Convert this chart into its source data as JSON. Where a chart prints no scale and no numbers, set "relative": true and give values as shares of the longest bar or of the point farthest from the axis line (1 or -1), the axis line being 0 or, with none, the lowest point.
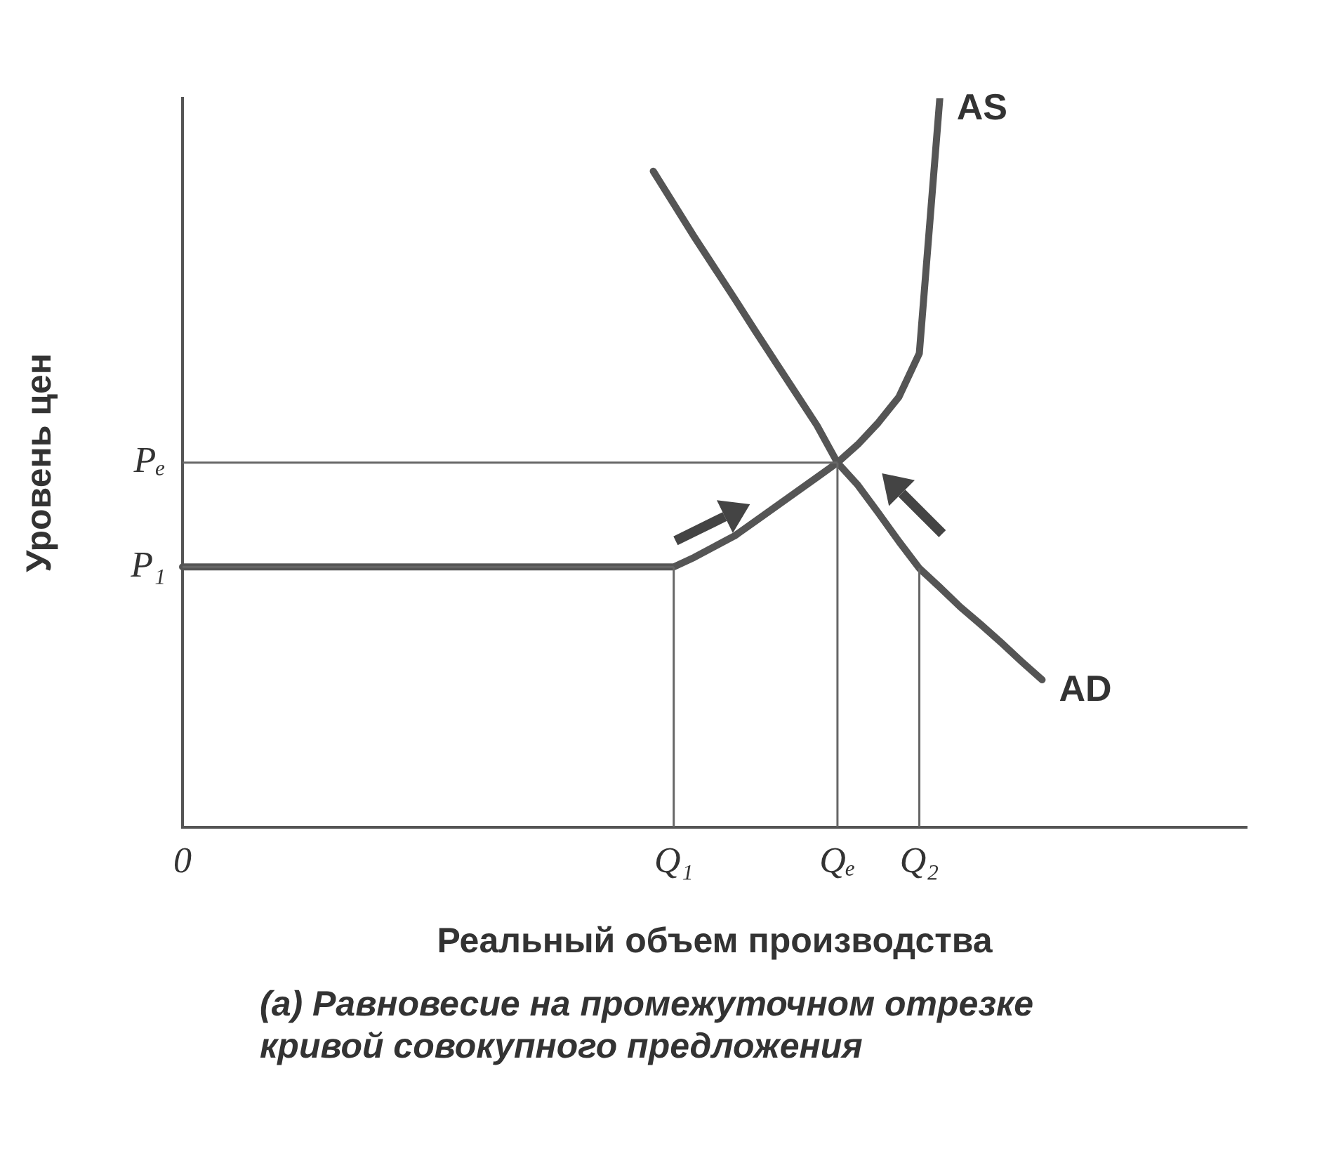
{
  "chart_data": {
    "type": "line",
    "relative": true,
    "title": "(a) Равновесие на промежуточном отрезке кривой совокупного предложения",
    "xlabel": "Реальный объем производства",
    "ylabel": "Уровень цен",
    "categories": [
      "0",
      null,
      null,
      null,
      null,
      null,
      null,
      null,
      null,
      null,
      null,
      null,
      null,
      null,
      null,
      null,
      null,
      null,
      null,
      null,
      null,
      null,
      null,
      null,
      "Q₁",
      null,
      null,
      null,
      null,
      null,
      null,
      null,
      "Qₑ",
      null,
      null,
      null,
      "Q₂",
      null,
      null,
      null,
      null,
      null,
      null,
      null,
      null,
      null,
      null,
      null,
      null,
      null,
      null,
      null,
      null
    ],
    "ref_lines": [
      {
        "axis": "x",
        "value": "Q₁",
        "color": "#666666"
      },
      {
        "axis": "x",
        "value": "Qₑ",
        "color": "#666666"
      },
      {
        "axis": "x",
        "value": "Q₂",
        "color": "#666666"
      },
      {
        "axis": "y",
        "value": 0.357,
        "label": "P₁",
        "color": "#666666"
      },
      {
        "axis": "y",
        "value": 0.5,
        "label": "Pₑ",
        "color": "#666666"
      }
    ],
    "series": [
      {
        "name": "AS",
        "color": "#555555",
        "values": [
          0.357,
          0.357,
          0.357,
          0.357,
          0.357,
          0.357,
          0.357,
          0.357,
          0.357,
          0.357,
          0.357,
          0.357,
          0.357,
          0.357,
          0.357,
          0.357,
          0.357,
          0.357,
          0.357,
          0.357,
          0.357,
          0.357,
          0.357,
          0.357,
          0.357,
          0.37,
          0.385,
          0.4,
          0.42,
          0.44,
          0.46,
          0.48,
          0.5,
          0.525,
          0.555,
          0.59,
          0.65,
          1.0,
          null,
          null,
          null,
          null,
          null,
          null,
          null,
          null,
          null,
          null,
          null,
          null,
          null,
          null,
          null
        ]
      },
      {
        "name": "AD",
        "color": "#555555",
        "values": [
          null,
          null,
          null,
          null,
          null,
          null,
          null,
          null,
          null,
          null,
          null,
          null,
          null,
          null,
          null,
          null,
          null,
          null,
          null,
          null,
          null,
          null,
          null,
          0.9,
          0.855,
          0.81,
          0.767,
          0.724,
          0.68,
          0.637,
          0.594,
          0.551,
          0.5,
          0.469,
          0.431,
          0.392,
          0.355,
          0.329,
          0.302,
          0.278,
          0.253,
          0.227,
          0.202,
          null,
          null,
          null,
          null,
          null,
          null,
          null,
          null,
          null,
          null
        ]
      }
    ],
    "legend": false,
    "grid": false,
    "marker": "none"
  }
}
